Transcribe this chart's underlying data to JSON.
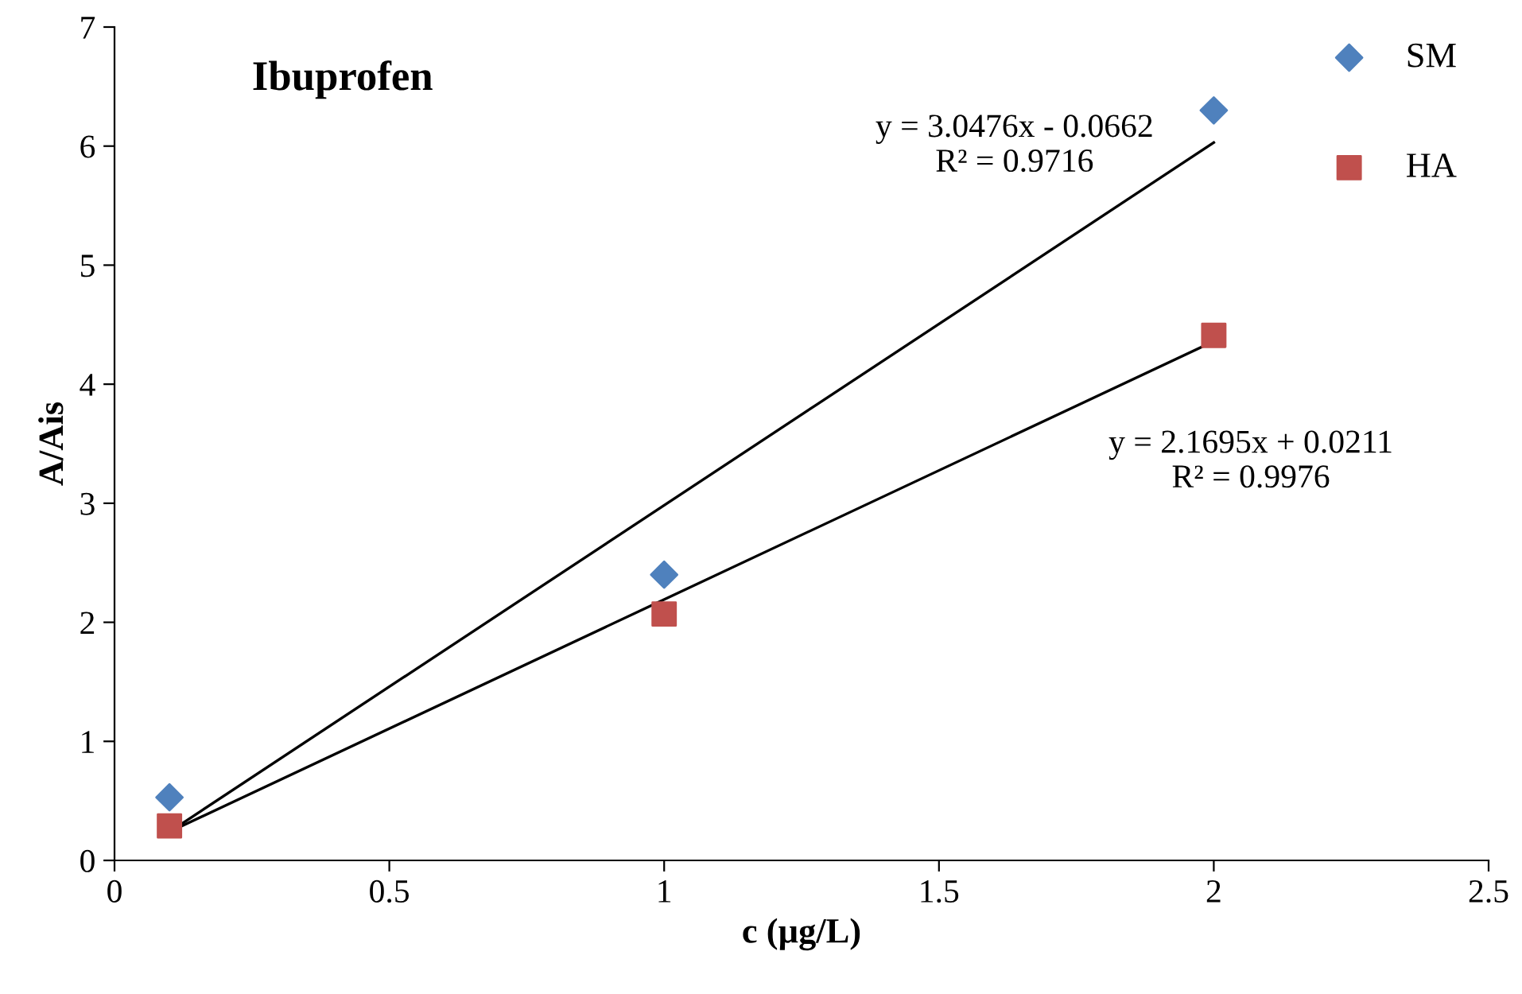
{
  "chart_data": {
    "type": "scatter",
    "title": "Ibuprofen",
    "xlabel": "c (µg/L)",
    "ylabel": "A/Ais",
    "series": [
      {
        "name": "SM",
        "marker": "diamond",
        "color": "#4f81bd",
        "x": [
          0.1,
          1,
          2
        ],
        "values": [
          0.53,
          2.4,
          6.3
        ]
      },
      {
        "name": "HA",
        "marker": "square",
        "color": "#c0504d",
        "x": [
          0.1,
          1,
          2
        ],
        "values": [
          0.29,
          2.07,
          4.41
        ]
      },
      {
        "type": "line",
        "marker": "none",
        "color": "#000000",
        "x": [
          0.1,
          2
        ],
        "values": [
          0.24,
          6.03
        ]
      },
      {
        "type": "line",
        "marker": "none",
        "color": "#000000",
        "x": [
          0.1,
          2
        ],
        "values": [
          0.24,
          4.36
        ]
      }
    ],
    "annotations": [
      "y = 3.0476x - 0.0662\nR² = 0.9716",
      "y = 2.1695x + 0.0211\nR² = 0.9976"
    ],
    "xlim": [
      0,
      2.5
    ],
    "xticks": [
      0,
      0.5,
      1,
      1.5,
      2,
      2.5
    ],
    "ylim": [
      0,
      7
    ],
    "yticks": [
      0,
      1,
      2,
      3,
      4,
      5,
      6,
      7
    ],
    "grid": false,
    "legend": "top right"
  }
}
